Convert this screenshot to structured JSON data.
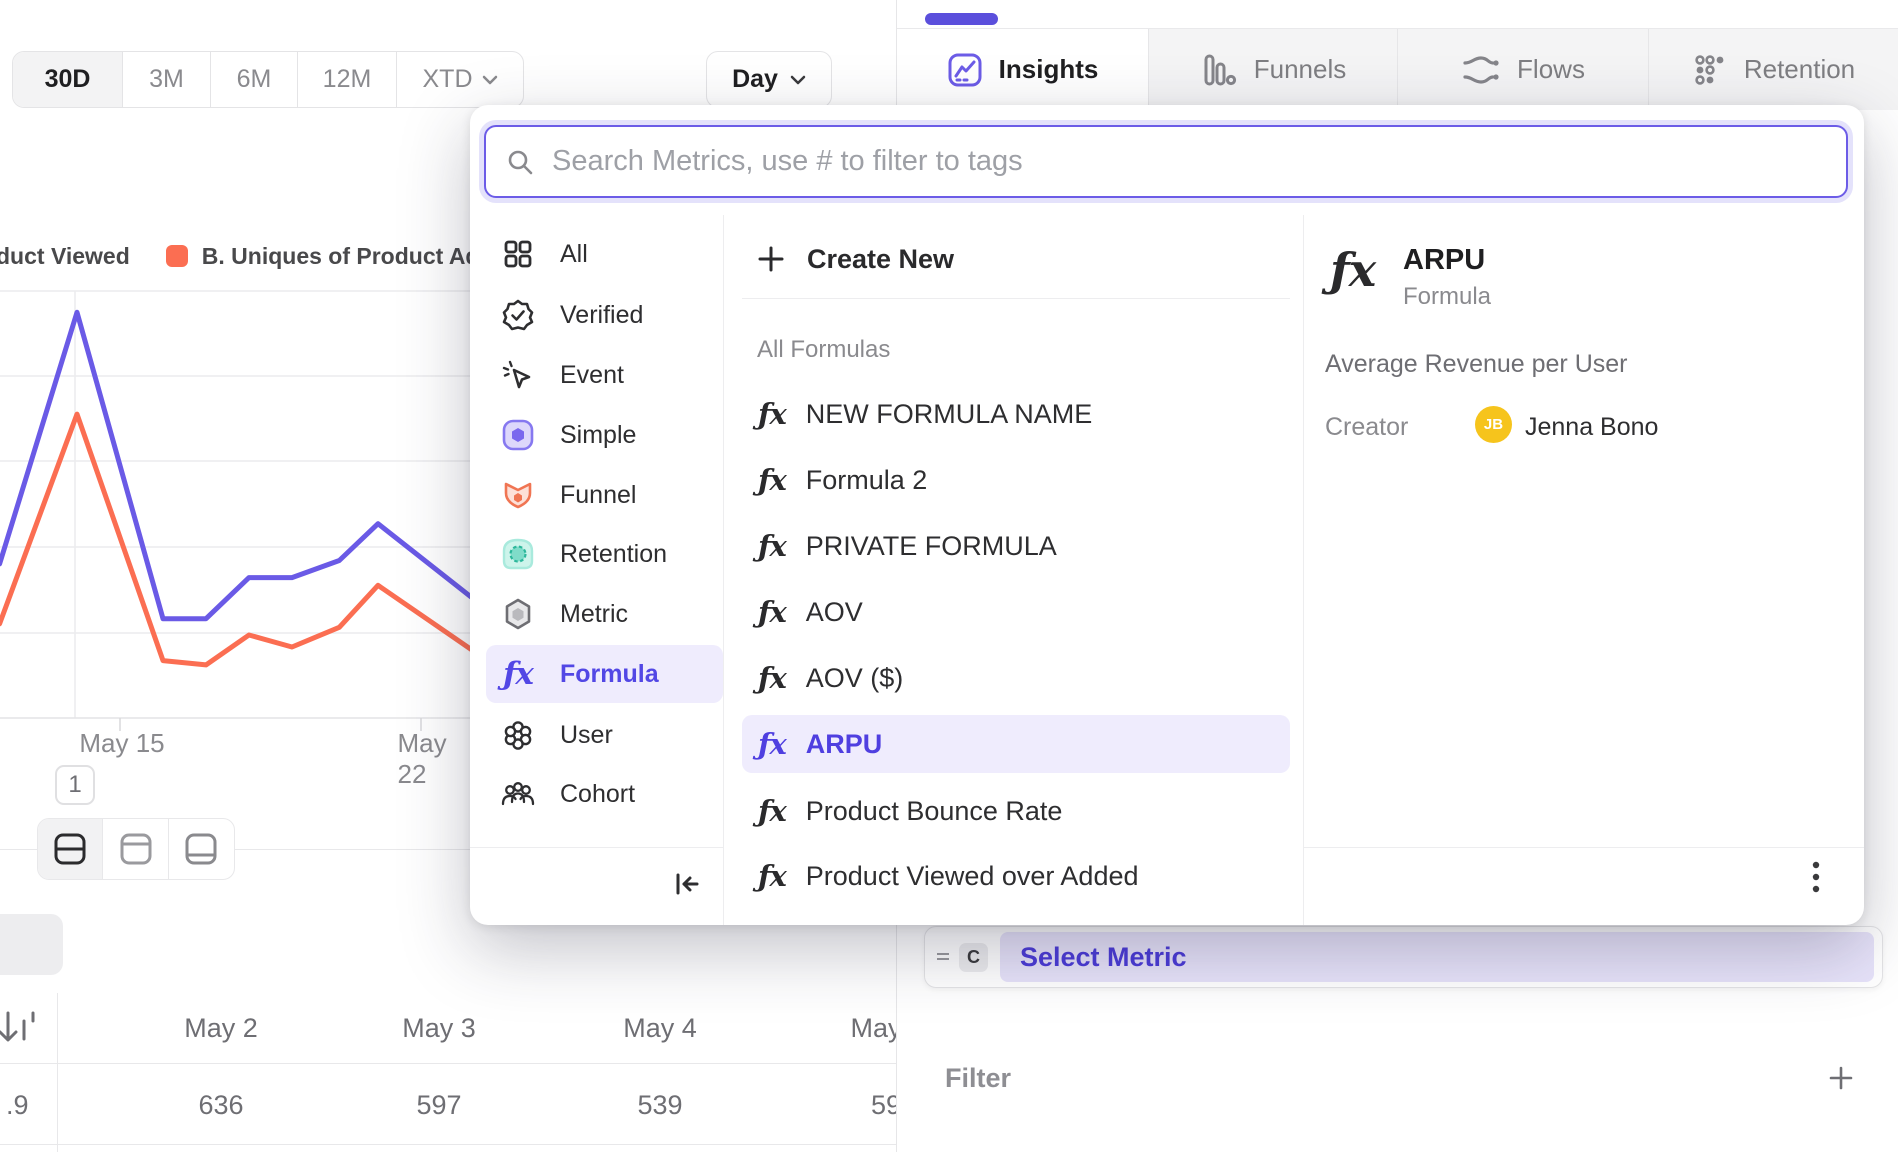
{
  "time_range": {
    "options": [
      "30D",
      "3M",
      "6M",
      "12M",
      "XTD"
    ],
    "selected": "30D",
    "granularity": "Day"
  },
  "tabs": [
    {
      "label": "Insights",
      "icon": "insights-chart-icon",
      "active": true
    },
    {
      "label": "Funnels",
      "icon": "funnels-bars-icon",
      "active": false
    },
    {
      "label": "Flows",
      "icon": "flows-waves-icon",
      "active": false
    },
    {
      "label": "Retention",
      "icon": "retention-dots-icon",
      "active": false
    }
  ],
  "legend": [
    {
      "label": "duct Viewed",
      "swatch": null
    },
    {
      "label": "B. Uniques of Product Add",
      "swatch": "#fb6e52"
    }
  ],
  "chart_data": {
    "type": "line",
    "title": "",
    "xlabel": "",
    "ylabel": "",
    "x_tick_labels": [
      "May 15",
      "May 22"
    ],
    "x_days": [
      12.2,
      14,
      16,
      17,
      18,
      19,
      20.1,
      21,
      23.2
    ],
    "series": [
      {
        "name": "duct Viewed",
        "color": "#6a5ae6",
        "values": [
          1.8,
          4.74,
          1.16,
          1.16,
          1.64,
          1.64,
          1.84,
          2.27,
          1.4
        ]
      },
      {
        "name": "B. Uniques of Product Add",
        "color": "#fb6e52",
        "values": [
          1.1,
          3.55,
          0.67,
          0.62,
          0.97,
          0.83,
          1.06,
          1.55,
          0.79
        ]
      }
    ],
    "ylim": [
      0,
      5
    ],
    "y_units": "gridline units (y-axis labels off-screen)",
    "grid": true,
    "legend_position": "top-left"
  },
  "axis": {
    "tick1": "May 15",
    "tick2": "May 22"
  },
  "pagination": {
    "page": "1"
  },
  "table": {
    "columns": [
      "May 2",
      "May 3",
      "May 4",
      "May"
    ],
    "row_partial_label": ".9",
    "rows": [
      {
        "values": [
          "636",
          "597",
          "539",
          "59"
        ]
      }
    ]
  },
  "popup": {
    "search": {
      "placeholder": "Search Metrics, use # to filter to tags",
      "icon": "search-icon"
    },
    "categories": [
      {
        "label": "All",
        "icon": "grid-icon",
        "selected": false
      },
      {
        "label": "Verified",
        "icon": "verified-badge-icon",
        "selected": false
      },
      {
        "label": "Event",
        "icon": "event-cursor-icon",
        "selected": false
      },
      {
        "label": "Simple",
        "icon": "simple-hexagon-icon",
        "selected": false
      },
      {
        "label": "Funnel",
        "icon": "funnel-icon",
        "selected": false
      },
      {
        "label": "Retention",
        "icon": "retention-circle-icon",
        "selected": false
      },
      {
        "label": "Metric",
        "icon": "metric-hexagon-icon",
        "selected": false
      },
      {
        "label": "Formula",
        "icon": "formula-fx-icon",
        "selected": true
      },
      {
        "label": "User",
        "icon": "user-cluster-icon",
        "selected": false
      },
      {
        "label": "Cohort",
        "icon": "cohort-people-icon",
        "selected": false
      }
    ],
    "create_new_label": "Create New",
    "section_label": "All Formulas",
    "formulas": [
      {
        "name": "NEW FORMULA NAME",
        "selected": false
      },
      {
        "name": "Formula 2",
        "selected": false
      },
      {
        "name": "PRIVATE FORMULA",
        "selected": false
      },
      {
        "name": "AOV",
        "selected": false
      },
      {
        "name": "AOV ($)",
        "selected": false
      },
      {
        "name": "ARPU",
        "selected": true
      },
      {
        "name": "Product Bounce Rate",
        "selected": false
      },
      {
        "name": "Product Viewed over Added",
        "selected": false
      }
    ],
    "detail": {
      "title": "ARPU",
      "type": "Formula",
      "description": "Average Revenue per User",
      "creator_label": "Creator",
      "creator_initials": "JB",
      "creator_name": "Jenna Bono"
    }
  },
  "builder": {
    "clause_letter": "C",
    "select_metric_label": "Select Metric",
    "filter_label": "Filter"
  },
  "colors": {
    "accent_purple": "#6c5ce7",
    "selected_purple_text": "#4f3fe0",
    "pill_purple_bg": "#efecfd",
    "line_purple": "#6a5ae6",
    "line_coral": "#fb6e52",
    "avatar_yellow": "#f6c41c",
    "retention_teal": "#2bb79b",
    "muted_gray": "#8a8a8e"
  }
}
